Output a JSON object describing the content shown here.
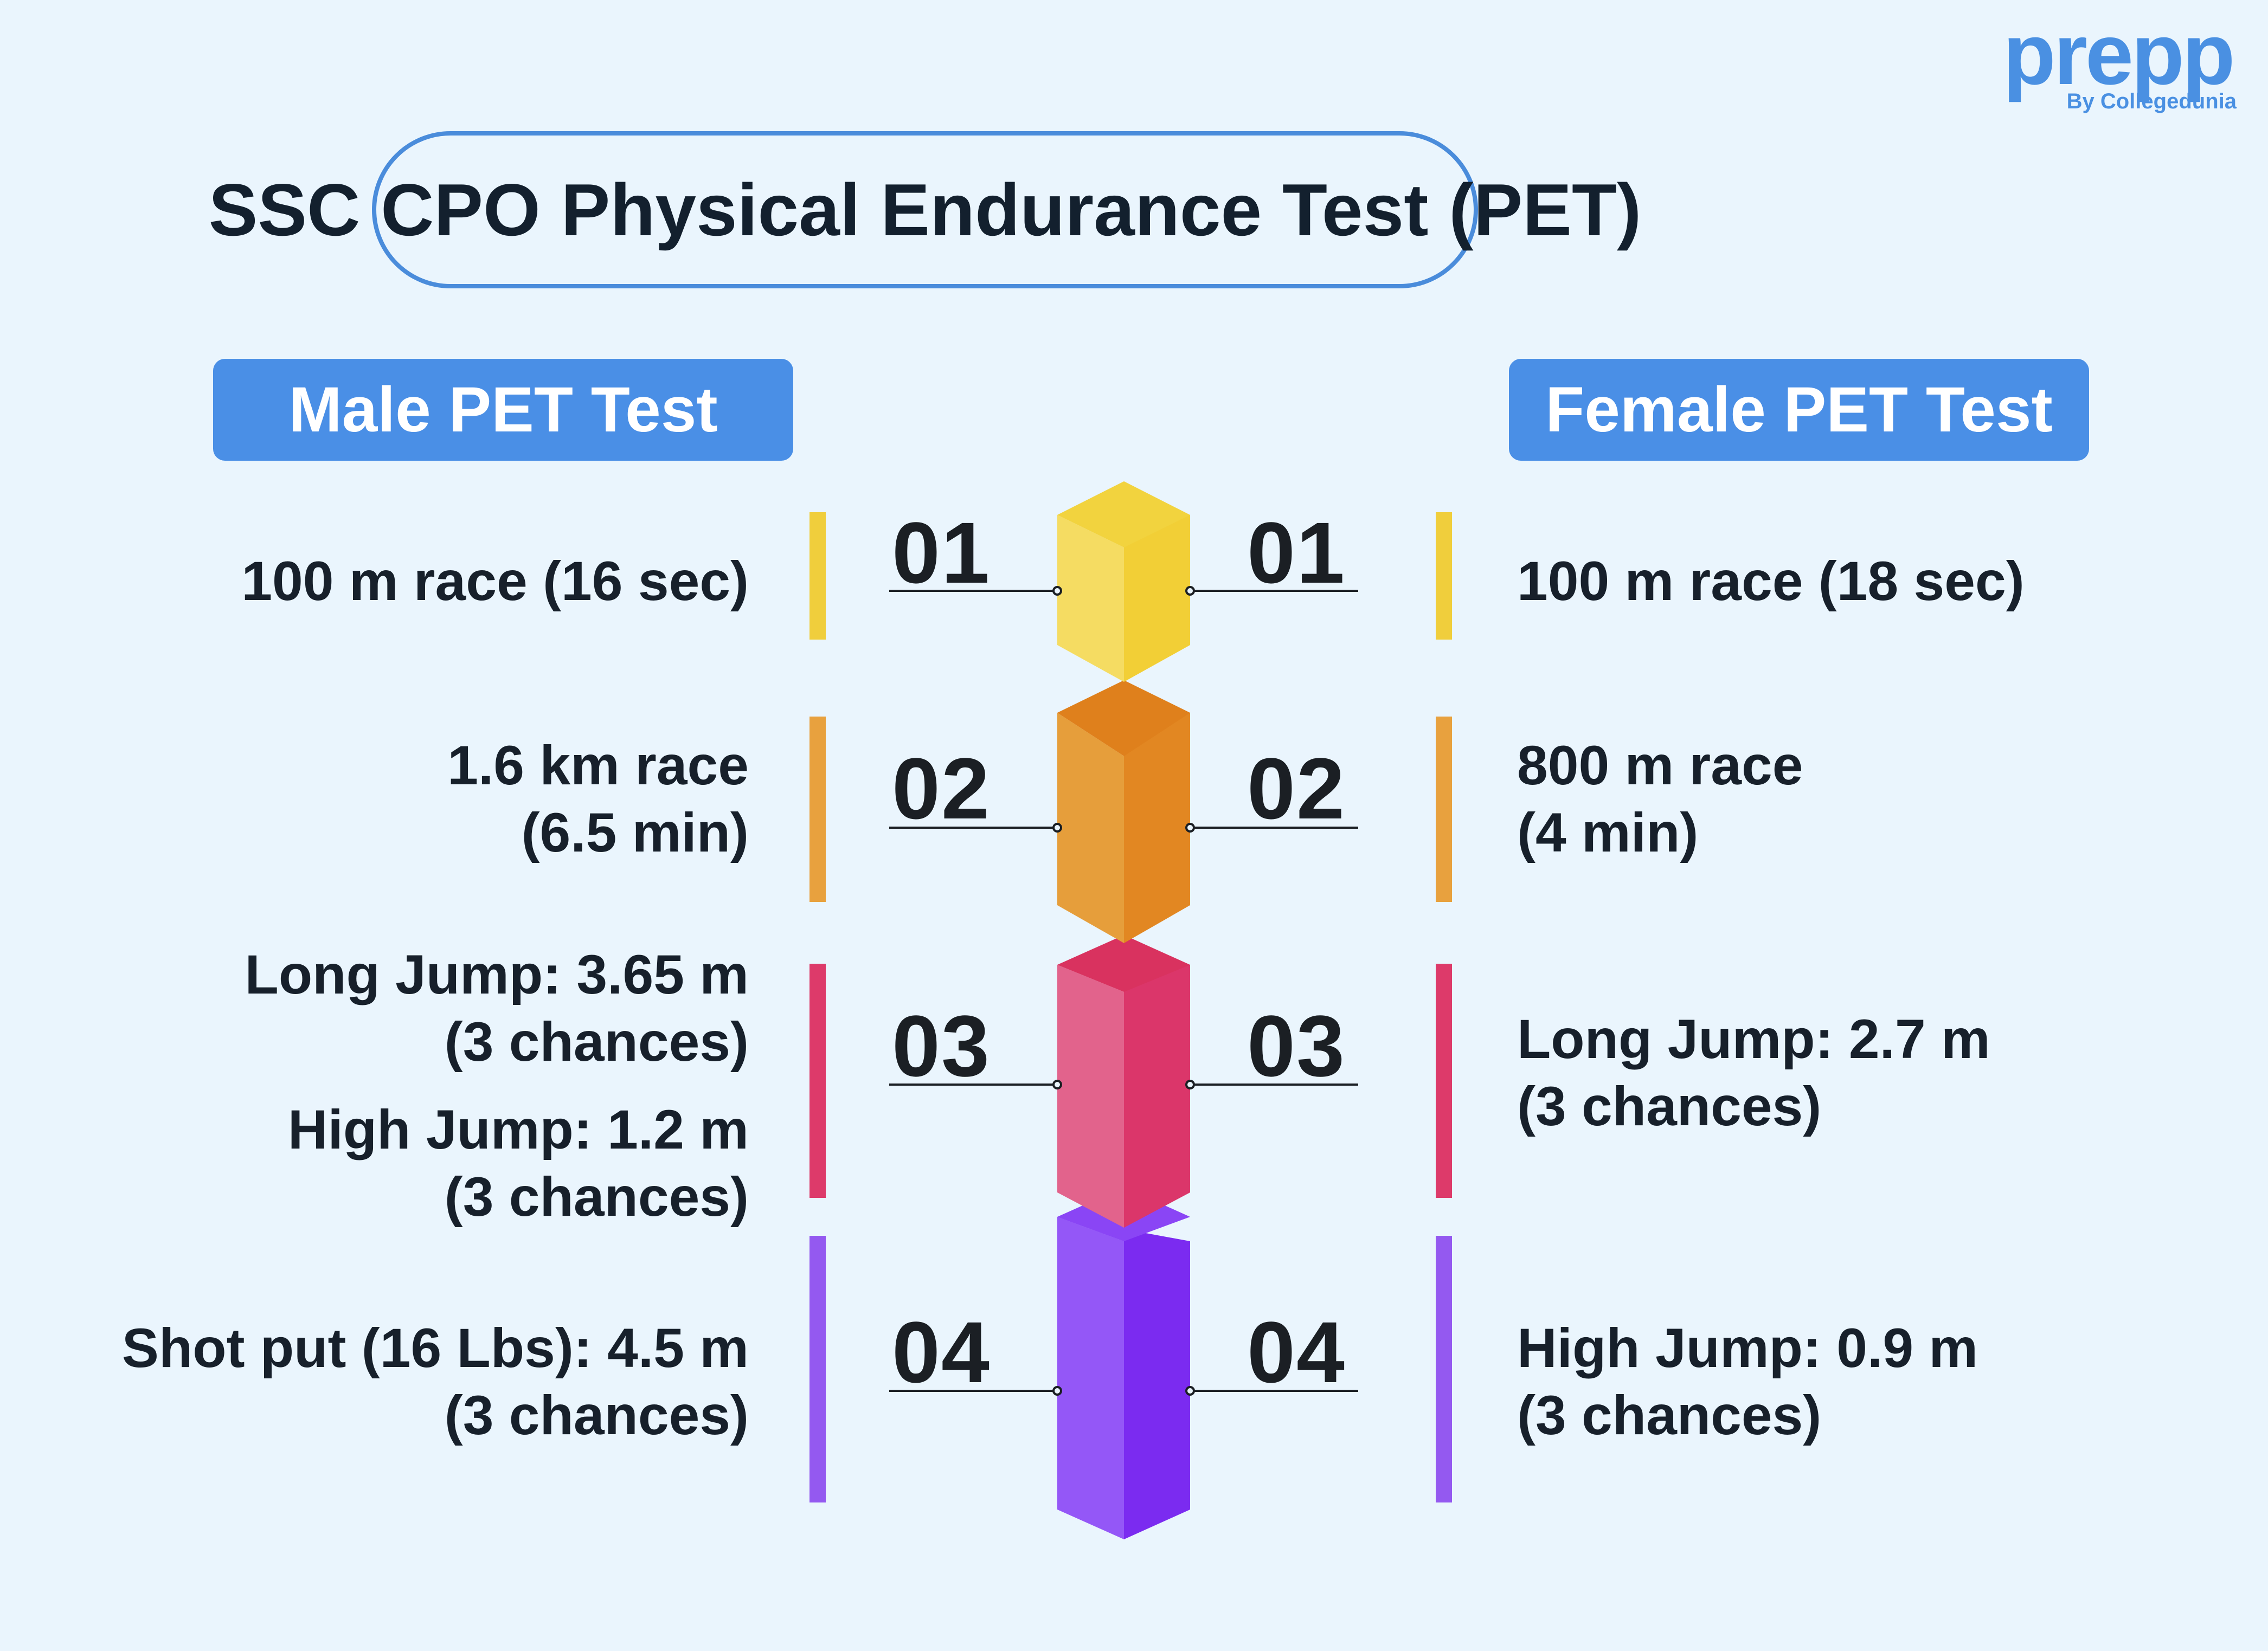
{
  "brand": {
    "name": "prepp",
    "tagline": "By Collegedunia",
    "color": "#4A90E2"
  },
  "title": "SSC CPO Physical Endurance Test (PET)",
  "male_header": "Male PET Test",
  "female_header": "Female PET Test",
  "steps": [
    {
      "number": "01",
      "color": "#F0CE3C",
      "male_lines": [
        "100 m race (16 sec)"
      ],
      "female_lines": [
        "100 m race (18 sec)"
      ]
    },
    {
      "number": "02",
      "color": "#E8A13E",
      "male_lines": [
        "1.6 km race",
        "(6.5 min)"
      ],
      "female_lines": [
        "800 m race",
        "(4 min)"
      ]
    },
    {
      "number": "03",
      "color": "#DD3A6A",
      "male_lines": [
        "Long Jump: 3.65 m",
        "(3 chances)",
        "High Jump: 1.2 m",
        "(3 chances)"
      ],
      "female_lines": [
        "Long Jump: 2.7 m",
        "(3 chances)"
      ]
    },
    {
      "number": "04",
      "color": "#9459F0",
      "male_lines": [
        "Shot put (16 Lbs): 4.5 m",
        "(3 chances)"
      ],
      "female_lines": [
        "High Jump: 0.9 m",
        "(3 chances)"
      ]
    }
  ]
}
